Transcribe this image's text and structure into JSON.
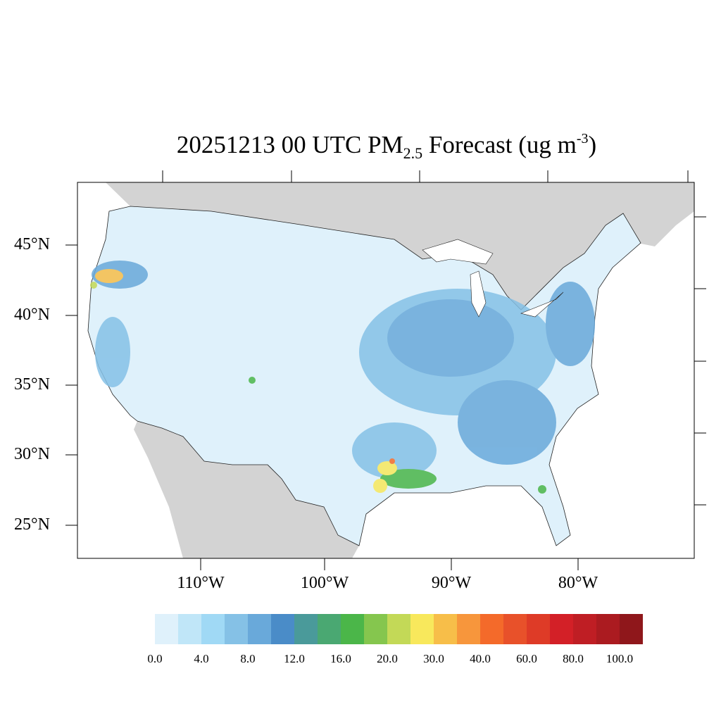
{
  "title": {
    "main": "20251213 00 UTC PM",
    "sub": "2.5",
    "tail": " Forecast (ug m",
    "sup": "-3",
    "close": ")"
  },
  "lat_labels": [
    "45°N",
    "40°N",
    "35°N",
    "30°N",
    "25°N"
  ],
  "lon_labels": [
    "110°W",
    "100°W",
    "90°W",
    "80°W"
  ],
  "colorbar": {
    "colors": [
      "#dff1fb",
      "#c0e6f8",
      "#a0d9f5",
      "#85c1e6",
      "#69a9da",
      "#4a8cc8",
      "#4a9a9a",
      "#4aa872",
      "#4bb649",
      "#85c64e",
      "#c3d957",
      "#f8e85c",
      "#f7be49",
      "#f7963c",
      "#f46a2a",
      "#e8512a",
      "#de3b27",
      "#d32027",
      "#bf1e24",
      "#ab1b20",
      "#8f171b"
    ],
    "labels": [
      "0.0",
      "4.0",
      "8.0",
      "12.0",
      "16.0",
      "20.0",
      "30.0",
      "40.0",
      "60.0",
      "80.0",
      "100.0"
    ]
  },
  "map": {
    "land_outside_color": "#d3d3d3",
    "water_color": "#ffffff",
    "variable": "PM2.5",
    "units": "ug m-3"
  }
}
